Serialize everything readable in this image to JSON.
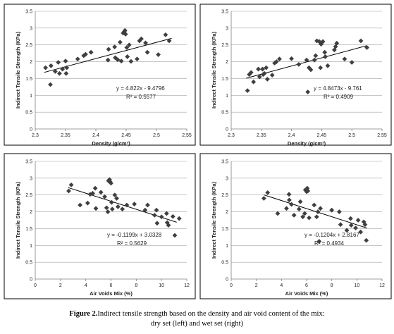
{
  "caption": {
    "bold": "Figure 2.",
    "line1": "Indirect tensile strength based on the density and air void content of the mix:",
    "line2": "dry set (left) and wet set (right)"
  },
  "colors": {
    "marker": "#3f3f3f",
    "trendline": "#000000",
    "grid": "#a6a6a6"
  },
  "chart_data": [
    {
      "type": "scatter",
      "xlabel": "Density (g/cm³)",
      "ylabel": "Indirect Tensile Strength (KPa)",
      "xlim": [
        2.3,
        2.55
      ],
      "ylim": [
        0,
        3.5
      ],
      "xticks": [
        "2.3",
        "2.35",
        "2.4",
        "2.45",
        "2.5",
        "2.55"
      ],
      "yticks": [
        "0",
        "0.5",
        "1",
        "1.5",
        "2",
        "2.5",
        "3",
        "3.5"
      ],
      "grid": "horizontal",
      "equation": "y = 4.822x - 9.4796",
      "r2": "R² = 0.5577",
      "trend": {
        "slope": 4.822,
        "intercept": -9.4796,
        "x_range": [
          2.315,
          2.525
        ]
      },
      "points": [
        [
          2.317,
          1.82
        ],
        [
          2.325,
          1.32
        ],
        [
          2.326,
          1.88
        ],
        [
          2.333,
          1.71
        ],
        [
          2.338,
          1.98
        ],
        [
          2.34,
          1.65
        ],
        [
          2.345,
          1.78
        ],
        [
          2.35,
          2.02
        ],
        [
          2.351,
          1.65
        ],
        [
          2.352,
          1.82
        ],
        [
          2.37,
          2.08
        ],
        [
          2.38,
          2.18
        ],
        [
          2.383,
          2.22
        ],
        [
          2.392,
          2.28
        ],
        [
          2.42,
          2.05
        ],
        [
          2.421,
          2.37
        ],
        [
          2.431,
          2.44
        ],
        [
          2.432,
          2.12
        ],
        [
          2.436,
          2.06
        ],
        [
          2.44,
          2.58
        ],
        [
          2.442,
          2.02
        ],
        [
          2.445,
          2.85
        ],
        [
          2.447,
          2.9
        ],
        [
          2.448,
          2.93
        ],
        [
          2.449,
          2.82
        ],
        [
          2.451,
          2.42
        ],
        [
          2.452,
          2.15
        ],
        [
          2.455,
          2.5
        ],
        [
          2.458,
          2.01
        ],
        [
          2.468,
          2.08
        ],
        [
          2.472,
          2.62
        ],
        [
          2.475,
          2.68
        ],
        [
          2.482,
          2.56
        ],
        [
          2.485,
          2.28
        ],
        [
          2.503,
          2.21
        ],
        [
          2.515,
          2.8
        ],
        [
          2.521,
          2.62
        ]
      ]
    },
    {
      "type": "scatter",
      "xlabel": "Density (g/cm³)",
      "ylabel": "Indirect Tensile Strength (KPa)",
      "xlim": [
        2.3,
        2.55
      ],
      "ylim": [
        0,
        3.5
      ],
      "xticks": [
        "2.3",
        "2.35",
        "2.4",
        "2.45",
        "2.5",
        "2.55"
      ],
      "yticks": [
        "0",
        "0.5",
        "1",
        "1.5",
        "2",
        "2.5",
        "3",
        "3.5"
      ],
      "grid": "horizontal",
      "equation": "y = 4.8473x - 9.761",
      "r2": "R² = 0.4909",
      "trend": {
        "slope": 4.8473,
        "intercept": -9.761,
        "x_range": [
          2.325,
          2.525
        ]
      },
      "points": [
        [
          2.327,
          1.14
        ],
        [
          2.33,
          1.62
        ],
        [
          2.333,
          1.68
        ],
        [
          2.337,
          1.4
        ],
        [
          2.345,
          1.78
        ],
        [
          2.347,
          1.55
        ],
        [
          2.352,
          1.78
        ],
        [
          2.353,
          1.62
        ],
        [
          2.355,
          1.65
        ],
        [
          2.358,
          1.82
        ],
        [
          2.36,
          1.48
        ],
        [
          2.368,
          1.6
        ],
        [
          2.372,
          1.96
        ],
        [
          2.375,
          2.0
        ],
        [
          2.38,
          2.08
        ],
        [
          2.4,
          2.09
        ],
        [
          2.412,
          1.92
        ],
        [
          2.425,
          2.05
        ],
        [
          2.427,
          1.1
        ],
        [
          2.429,
          1.82
        ],
        [
          2.432,
          1.76
        ],
        [
          2.438,
          2.05
        ],
        [
          2.44,
          2.18
        ],
        [
          2.442,
          2.62
        ],
        [
          2.446,
          2.6
        ],
        [
          2.448,
          1.82
        ],
        [
          2.449,
          2.52
        ],
        [
          2.452,
          2.6
        ],
        [
          2.455,
          2.28
        ],
        [
          2.456,
          2.15
        ],
        [
          2.46,
          1.88
        ],
        [
          2.471,
          2.35
        ],
        [
          2.473,
          2.45
        ],
        [
          2.475,
          2.55
        ],
        [
          2.488,
          2.08
        ],
        [
          2.5,
          1.98
        ],
        [
          2.515,
          2.62
        ],
        [
          2.525,
          2.42
        ]
      ]
    },
    {
      "type": "scatter",
      "xlabel": "Air Voids Mix (%)",
      "ylabel": "Indirect Tensile Strength (KPa)",
      "xlim": [
        0,
        12
      ],
      "ylim": [
        0,
        3.5
      ],
      "xticks": [
        "0",
        "2",
        "4",
        "6",
        "8",
        "10",
        "12"
      ],
      "yticks": [
        "0",
        "0.5",
        "1",
        "1.5",
        "2",
        "2.5",
        "3",
        "3.5"
      ],
      "grid": "horizontal",
      "equation": "y = -0.1199x + 3.0328",
      "r2": "R² = 0.5629",
      "trend": {
        "slope": -0.1199,
        "intercept": 3.0328,
        "x_range": [
          2.6,
          11.2
        ]
      },
      "points": [
        [
          2.65,
          2.62
        ],
        [
          2.85,
          2.8
        ],
        [
          3.55,
          2.2
        ],
        [
          4.15,
          2.26
        ],
        [
          4.35,
          2.52
        ],
        [
          4.55,
          2.55
        ],
        [
          4.75,
          2.7
        ],
        [
          4.8,
          2.1
        ],
        [
          5.2,
          2.58
        ],
        [
          5.5,
          2.45
        ],
        [
          5.65,
          2.12
        ],
        [
          5.75,
          2.0
        ],
        [
          5.8,
          2.92
        ],
        [
          5.88,
          2.96
        ],
        [
          5.92,
          2.9
        ],
        [
          6.0,
          2.85
        ],
        [
          6.05,
          2.28
        ],
        [
          6.1,
          2.08
        ],
        [
          6.3,
          2.5
        ],
        [
          6.45,
          2.4
        ],
        [
          6.55,
          2.15
        ],
        [
          6.9,
          2.08
        ],
        [
          7.25,
          2.2
        ],
        [
          7.85,
          2.23
        ],
        [
          8.7,
          2.05
        ],
        [
          8.9,
          2.2
        ],
        [
          9.45,
          1.9
        ],
        [
          9.6,
          2.05
        ],
        [
          9.65,
          1.66
        ],
        [
          10.0,
          1.85
        ],
        [
          10.4,
          1.95
        ],
        [
          10.45,
          1.68
        ],
        [
          10.55,
          1.6
        ],
        [
          10.9,
          1.86
        ],
        [
          11.05,
          1.3
        ],
        [
          11.4,
          1.8
        ]
      ]
    },
    {
      "type": "scatter",
      "xlabel": "Air Voids Mix (%)",
      "ylabel": "Indirect Tensile Strength (KPa)",
      "xlim": [
        0,
        12
      ],
      "ylim": [
        0,
        3.5
      ],
      "xticks": [
        "0",
        "2",
        "4",
        "6",
        "8",
        "10",
        "12"
      ],
      "yticks": [
        "0",
        "0.5",
        "1",
        "1.5",
        "2",
        "2.5",
        "3",
        "3.5"
      ],
      "grid": "horizontal",
      "equation": "y = -0.1204x + 2.8167",
      "r2": "R² = 0.4934",
      "trend": {
        "slope": -0.1204,
        "intercept": 2.8167,
        "x_range": [
          2.6,
          10.8
        ]
      },
      "points": [
        [
          2.6,
          2.4
        ],
        [
          2.9,
          2.57
        ],
        [
          3.7,
          1.95
        ],
        [
          4.4,
          2.1
        ],
        [
          4.6,
          2.52
        ],
        [
          4.62,
          2.35
        ],
        [
          4.8,
          2.22
        ],
        [
          5.0,
          1.9
        ],
        [
          5.4,
          2.08
        ],
        [
          5.5,
          2.3
        ],
        [
          5.7,
          1.85
        ],
        [
          5.85,
          1.95
        ],
        [
          5.9,
          2.65
        ],
        [
          6.0,
          2.6
        ],
        [
          6.05,
          2.7
        ],
        [
          6.1,
          2.62
        ],
        [
          6.2,
          1.82
        ],
        [
          6.6,
          2.2
        ],
        [
          6.8,
          1.85
        ],
        [
          6.9,
          2.0
        ],
        [
          7.0,
          1.12
        ],
        [
          7.1,
          2.1
        ],
        [
          8.0,
          2.05
        ],
        [
          8.6,
          2.0
        ],
        [
          8.7,
          1.62
        ],
        [
          9.2,
          1.45
        ],
        [
          9.5,
          1.8
        ],
        [
          9.55,
          1.6
        ],
        [
          9.9,
          1.52
        ],
        [
          10.1,
          1.75
        ],
        [
          10.3,
          1.4
        ],
        [
          10.55,
          1.7
        ],
        [
          10.65,
          1.62
        ],
        [
          10.75,
          1.15
        ]
      ]
    }
  ]
}
